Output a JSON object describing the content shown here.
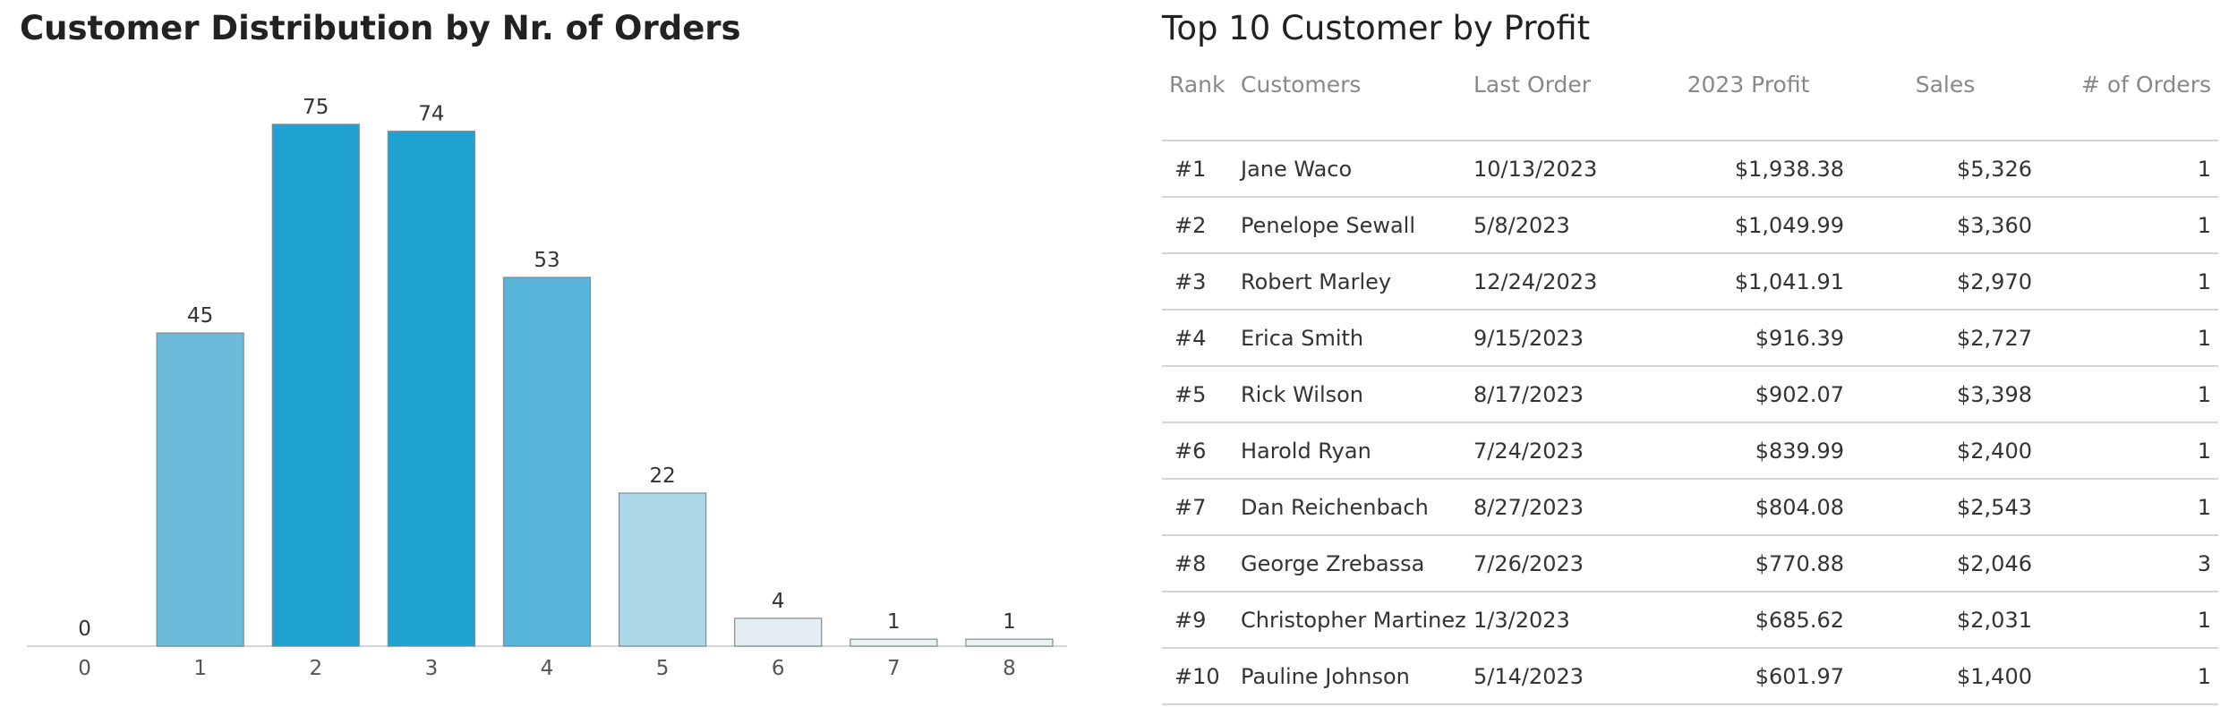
{
  "chart_data": {
    "type": "bar",
    "title": "Customer Distribution by Nr. of Orders",
    "categories": [
      "0",
      "1",
      "2",
      "3",
      "4",
      "5",
      "6",
      "7",
      "8"
    ],
    "values": [
      0,
      45,
      75,
      74,
      53,
      22,
      4,
      1,
      1
    ],
    "ylim": [
      0,
      80
    ],
    "grid": false,
    "colors": [
      "#e4edf1",
      "#6bbad9",
      "#1fa2d2",
      "#20a3d3",
      "#57b5da",
      "#acd8e8",
      "#e4edf1",
      "#eef1f2",
      "#eef1f2"
    ]
  },
  "table": {
    "title": "Top 10 Customer by Profit",
    "columns": [
      "Rank",
      "Customers",
      "Last Order",
      "2023 Profit",
      "Sales",
      "# of Orders"
    ],
    "rows": [
      {
        "rank": "#1",
        "customer": "Jane Waco",
        "last_order": "10/13/2023",
        "profit": "$1,938.38",
        "sales": "$5,326",
        "orders": "1"
      },
      {
        "rank": "#2",
        "customer": "Penelope Sewall",
        "last_order": "5/8/2023",
        "profit": "$1,049.99",
        "sales": "$3,360",
        "orders": "1"
      },
      {
        "rank": "#3",
        "customer": "Robert Marley",
        "last_order": "12/24/2023",
        "profit": "$1,041.91",
        "sales": "$2,970",
        "orders": "1"
      },
      {
        "rank": "#4",
        "customer": "Erica Smith",
        "last_order": "9/15/2023",
        "profit": "$916.39",
        "sales": "$2,727",
        "orders": "1"
      },
      {
        "rank": "#5",
        "customer": "Rick Wilson",
        "last_order": "8/17/2023",
        "profit": "$902.07",
        "sales": "$3,398",
        "orders": "1"
      },
      {
        "rank": "#6",
        "customer": "Harold Ryan",
        "last_order": "7/24/2023",
        "profit": "$839.99",
        "sales": "$2,400",
        "orders": "1"
      },
      {
        "rank": "#7",
        "customer": "Dan Reichenbach",
        "last_order": "8/27/2023",
        "profit": "$804.08",
        "sales": "$2,543",
        "orders": "1"
      },
      {
        "rank": "#8",
        "customer": "George Zrebassa",
        "last_order": "7/26/2023",
        "profit": "$770.88",
        "sales": "$2,046",
        "orders": "3"
      },
      {
        "rank": "#9",
        "customer": "Christopher Martinez",
        "last_order": "1/3/2023",
        "profit": "$685.62",
        "sales": "$2,031",
        "orders": "1"
      },
      {
        "rank": "#10",
        "customer": "Pauline Johnson",
        "last_order": "5/14/2023",
        "profit": "$601.97",
        "sales": "$1,400",
        "orders": "1"
      }
    ]
  }
}
